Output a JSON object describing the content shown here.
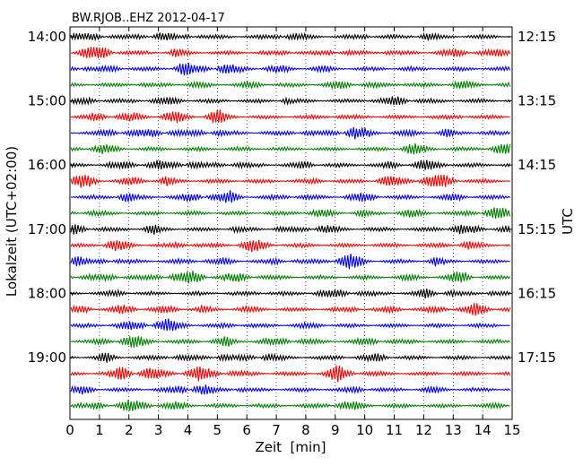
{
  "chart_data": {
    "type": "line",
    "title": "BW.RJOB..EHZ 2012-04-17",
    "xlabel": "Zeit  [min]",
    "ylabel_left": "Lokalzeit (UTC+02:00)",
    "ylabel_right": "UTC",
    "xlim": [
      0,
      15
    ],
    "x_ticks": [
      "0",
      "1",
      "2",
      "3",
      "4",
      "5",
      "6",
      "7",
      "8",
      "9",
      "10",
      "11",
      "12",
      "13",
      "14",
      "15"
    ],
    "x_grid": "dotted",
    "trace_interval_min": 15,
    "trace_count": 24,
    "trace_colors": [
      "#000000",
      "#ff0000",
      "#0000ff",
      "#008000"
    ],
    "left_ticks": [
      {
        "label": "14:00",
        "trace": 0
      },
      {
        "label": "15:00",
        "trace": 4
      },
      {
        "label": "16:00",
        "trace": 8
      },
      {
        "label": "17:00",
        "trace": 12
      },
      {
        "label": "18:00",
        "trace": 16
      },
      {
        "label": "19:00",
        "trace": 20
      }
    ],
    "right_ticks": [
      {
        "label": "12:15",
        "trace": 0
      },
      {
        "label": "13:15",
        "trace": 4
      },
      {
        "label": "14:15",
        "trace": 8
      },
      {
        "label": "15:15",
        "trace": 12
      },
      {
        "label": "16:15",
        "trace": 16
      },
      {
        "label": "17:15",
        "trace": 20
      }
    ]
  }
}
